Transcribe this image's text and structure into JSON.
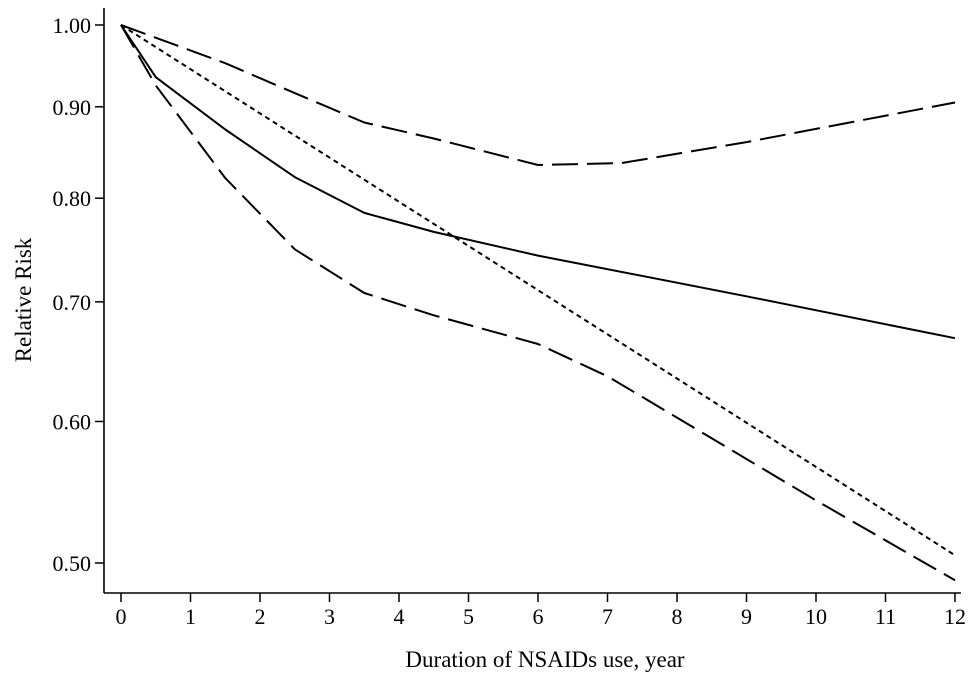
{
  "chart_data": {
    "type": "line",
    "xlabel": "Duration of NSAIDs use, year",
    "ylabel": "Relative Risk",
    "y_scale": "log",
    "xlim": [
      0,
      12
    ],
    "ylim": [
      0.485,
      1.02
    ],
    "x_ticks": [
      0,
      1,
      2,
      3,
      4,
      5,
      6,
      7,
      8,
      9,
      10,
      11,
      12
    ],
    "x_tick_labels": [
      "0",
      "1",
      "2",
      "3",
      "4",
      "5",
      "6",
      "7",
      "8",
      "9",
      "10",
      "11",
      "12"
    ],
    "y_ticks": [
      0.5,
      0.6,
      0.7,
      0.8,
      0.9,
      1.0
    ],
    "y_tick_labels": [
      "0.50",
      "0.60",
      "0.70",
      "0.80",
      "0.90",
      "1.00"
    ],
    "grid": false,
    "series": [
      {
        "style": "solid",
        "x": [
          0,
          0.5,
          1.5,
          2.5,
          3.5,
          4.5,
          6,
          9,
          12
        ],
        "y": [
          1.0,
          0.935,
          0.874,
          0.822,
          0.785,
          0.766,
          0.743,
          0.705,
          0.668
        ]
      },
      {
        "style": "long-dash",
        "x": [
          0,
          1.5,
          2.5,
          3.5,
          4.5,
          6,
          7.2,
          9,
          12
        ],
        "y": [
          1.0,
          0.952,
          0.916,
          0.882,
          0.864,
          0.835,
          0.837,
          0.86,
          0.905
        ]
      },
      {
        "style": "long-dash",
        "x": [
          0,
          0.5,
          1.5,
          2.5,
          3.5,
          4.5,
          6,
          7,
          8,
          10,
          12
        ],
        "y": [
          1.0,
          0.925,
          0.821,
          0.749,
          0.708,
          0.688,
          0.663,
          0.636,
          0.603,
          0.542,
          0.489
        ]
      },
      {
        "style": "short-dash",
        "x": [
          0,
          12
        ],
        "y": [
          1.0,
          0.505
        ]
      }
    ]
  }
}
